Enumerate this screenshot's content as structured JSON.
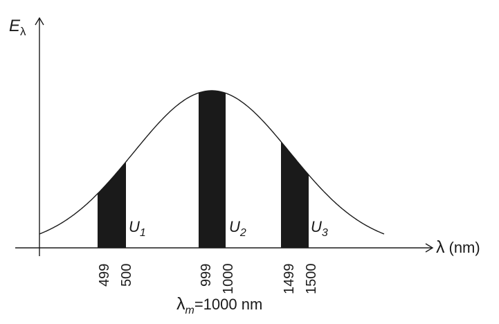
{
  "axes": {
    "y_label": {
      "symbol": "E",
      "subscript": "λ"
    },
    "x_label": {
      "symbol": "λ",
      "unit": "(nm)"
    }
  },
  "bands": [
    {
      "label": "U",
      "index": "1",
      "ticks": [
        "499",
        "500"
      ]
    },
    {
      "label": "U",
      "index": "2",
      "ticks": [
        "999",
        "1000"
      ]
    },
    {
      "label": "U",
      "index": "3",
      "ticks": [
        "1499",
        "1500"
      ]
    }
  ],
  "peak_note": {
    "symbol": "λ",
    "subscript": "m",
    "value": "=1000 nm"
  },
  "colors": {
    "line": "#1a1a1a",
    "fill": "#1a1a1a",
    "background": "#ffffff"
  }
}
